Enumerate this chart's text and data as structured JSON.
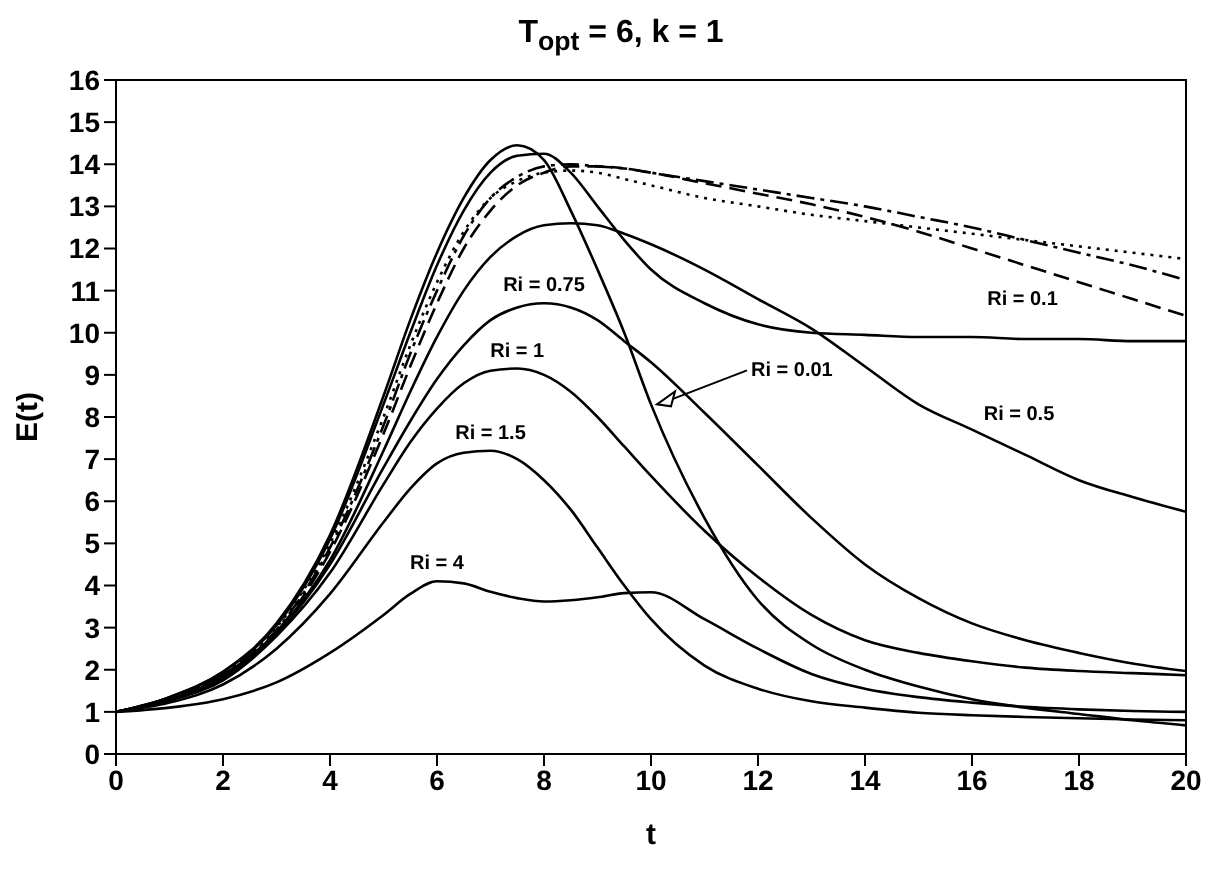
{
  "chart_data": {
    "type": "line",
    "title": "T$_{opt}$ = 6, k = 1",
    "xlabel": "t",
    "ylabel": "E(t)",
    "x": [
      0,
      1,
      2,
      3,
      4,
      5,
      5.5,
      6,
      6.5,
      7,
      7.5,
      8,
      8.5,
      9,
      9.5,
      10,
      11,
      12,
      13,
      14,
      15,
      16,
      17,
      18,
      19,
      20
    ],
    "xlim": [
      0,
      20
    ],
    "xticks": [
      0,
      2,
      4,
      6,
      8,
      10,
      12,
      14,
      16,
      18,
      20
    ],
    "ylim": [
      0,
      16
    ],
    "yticks": [
      0,
      1,
      2,
      3,
      4,
      5,
      6,
      7,
      8,
      9,
      10,
      11,
      12,
      13,
      14,
      15,
      16
    ],
    "marker": "none",
    "series": [
      {
        "name": "Ri = 0.01",
        "color": "#000000",
        "line_style": "solid",
        "values": [
          1,
          1.35,
          1.95,
          3.1,
          5.2,
          8.5,
          10.3,
          11.9,
          13.2,
          14.1,
          14.45,
          14.1,
          12.9,
          11.5,
          10.0,
          8.3,
          5.6,
          3.65,
          2.6,
          2.0,
          1.6,
          1.3,
          1.1,
          0.95,
          0.8,
          0.68
        ]
      },
      {
        "name": "Ri = 0.1",
        "color": "#000000",
        "line_style": "solid",
        "values": [
          1,
          1.35,
          1.95,
          3.05,
          5.1,
          8.3,
          10.0,
          11.6,
          12.9,
          13.8,
          14.2,
          14.25,
          13.8,
          13.0,
          12.2,
          11.5,
          10.7,
          10.2,
          10.0,
          9.95,
          9.9,
          9.9,
          9.85,
          9.85,
          9.8,
          9.8
        ]
      },
      {
        "color": "#000000",
        "line_style": "dotted",
        "values": [
          1,
          1.33,
          1.9,
          3.0,
          5.0,
          8.0,
          9.7,
          11.2,
          12.4,
          13.2,
          13.6,
          13.8,
          13.85,
          13.8,
          13.65,
          13.5,
          13.2,
          13.0,
          12.8,
          12.65,
          12.5,
          12.35,
          12.2,
          12.05,
          11.9,
          11.75
        ]
      },
      {
        "color": "#000000",
        "line_style": "dashdot",
        "values": [
          1,
          1.33,
          1.9,
          2.95,
          4.9,
          7.8,
          9.5,
          11.0,
          12.3,
          13.2,
          13.7,
          13.95,
          14.0,
          13.95,
          13.9,
          13.8,
          13.6,
          13.4,
          13.2,
          13.0,
          12.75,
          12.5,
          12.2,
          11.9,
          11.6,
          11.25
        ]
      },
      {
        "color": "#000000",
        "line_style": "dashed",
        "values": [
          1,
          1.32,
          1.88,
          2.9,
          4.8,
          7.6,
          9.2,
          10.7,
          12.0,
          12.9,
          13.5,
          13.8,
          13.95,
          13.95,
          13.9,
          13.8,
          13.55,
          13.3,
          13.05,
          12.75,
          12.4,
          12.0,
          11.6,
          11.2,
          10.8,
          10.4
        ]
      },
      {
        "name": "Ri = 0.5",
        "color": "#000000",
        "line_style": "solid",
        "values": [
          1,
          1.3,
          1.85,
          2.9,
          4.6,
          7.2,
          8.6,
          9.9,
          11.0,
          11.8,
          12.3,
          12.55,
          12.6,
          12.55,
          12.35,
          12.1,
          11.5,
          10.8,
          10.1,
          9.2,
          8.3,
          7.7,
          7.1,
          6.5,
          6.1,
          5.75
        ]
      },
      {
        "name": "Ri = 0.75",
        "color": "#000000",
        "line_style": "solid",
        "values": [
          1,
          1.28,
          1.8,
          2.85,
          4.5,
          6.8,
          7.9,
          8.9,
          9.7,
          10.3,
          10.6,
          10.7,
          10.6,
          10.3,
          9.8,
          9.3,
          8.1,
          6.85,
          5.6,
          4.5,
          3.7,
          3.1,
          2.7,
          2.4,
          2.15,
          1.97
        ]
      },
      {
        "name": "Ri = 1",
        "color": "#000000",
        "line_style": "solid",
        "values": [
          1,
          1.27,
          1.75,
          2.8,
          4.3,
          6.4,
          7.4,
          8.2,
          8.8,
          9.1,
          9.15,
          9.0,
          8.6,
          8.0,
          7.3,
          6.6,
          5.3,
          4.2,
          3.3,
          2.7,
          2.4,
          2.2,
          2.05,
          1.97,
          1.92,
          1.87
        ]
      },
      {
        "name": "Ri = 1.5",
        "color": "#000000",
        "line_style": "solid",
        "values": [
          1,
          1.22,
          1.65,
          2.5,
          3.8,
          5.5,
          6.3,
          6.9,
          7.15,
          7.2,
          7.0,
          6.5,
          5.8,
          4.9,
          4.0,
          3.2,
          2.1,
          1.55,
          1.25,
          1.1,
          0.98,
          0.92,
          0.88,
          0.85,
          0.82,
          0.8
        ]
      },
      {
        "name": "Ri = 4",
        "color": "#000000",
        "line_style": "solid",
        "values": [
          1,
          1.1,
          1.3,
          1.7,
          2.4,
          3.3,
          3.8,
          4.1,
          4.05,
          3.85,
          3.7,
          3.62,
          3.65,
          3.72,
          3.82,
          3.84,
          3.2,
          2.5,
          1.9,
          1.55,
          1.35,
          1.22,
          1.12,
          1.06,
          1.02,
          1.0
        ]
      }
    ]
  }
}
